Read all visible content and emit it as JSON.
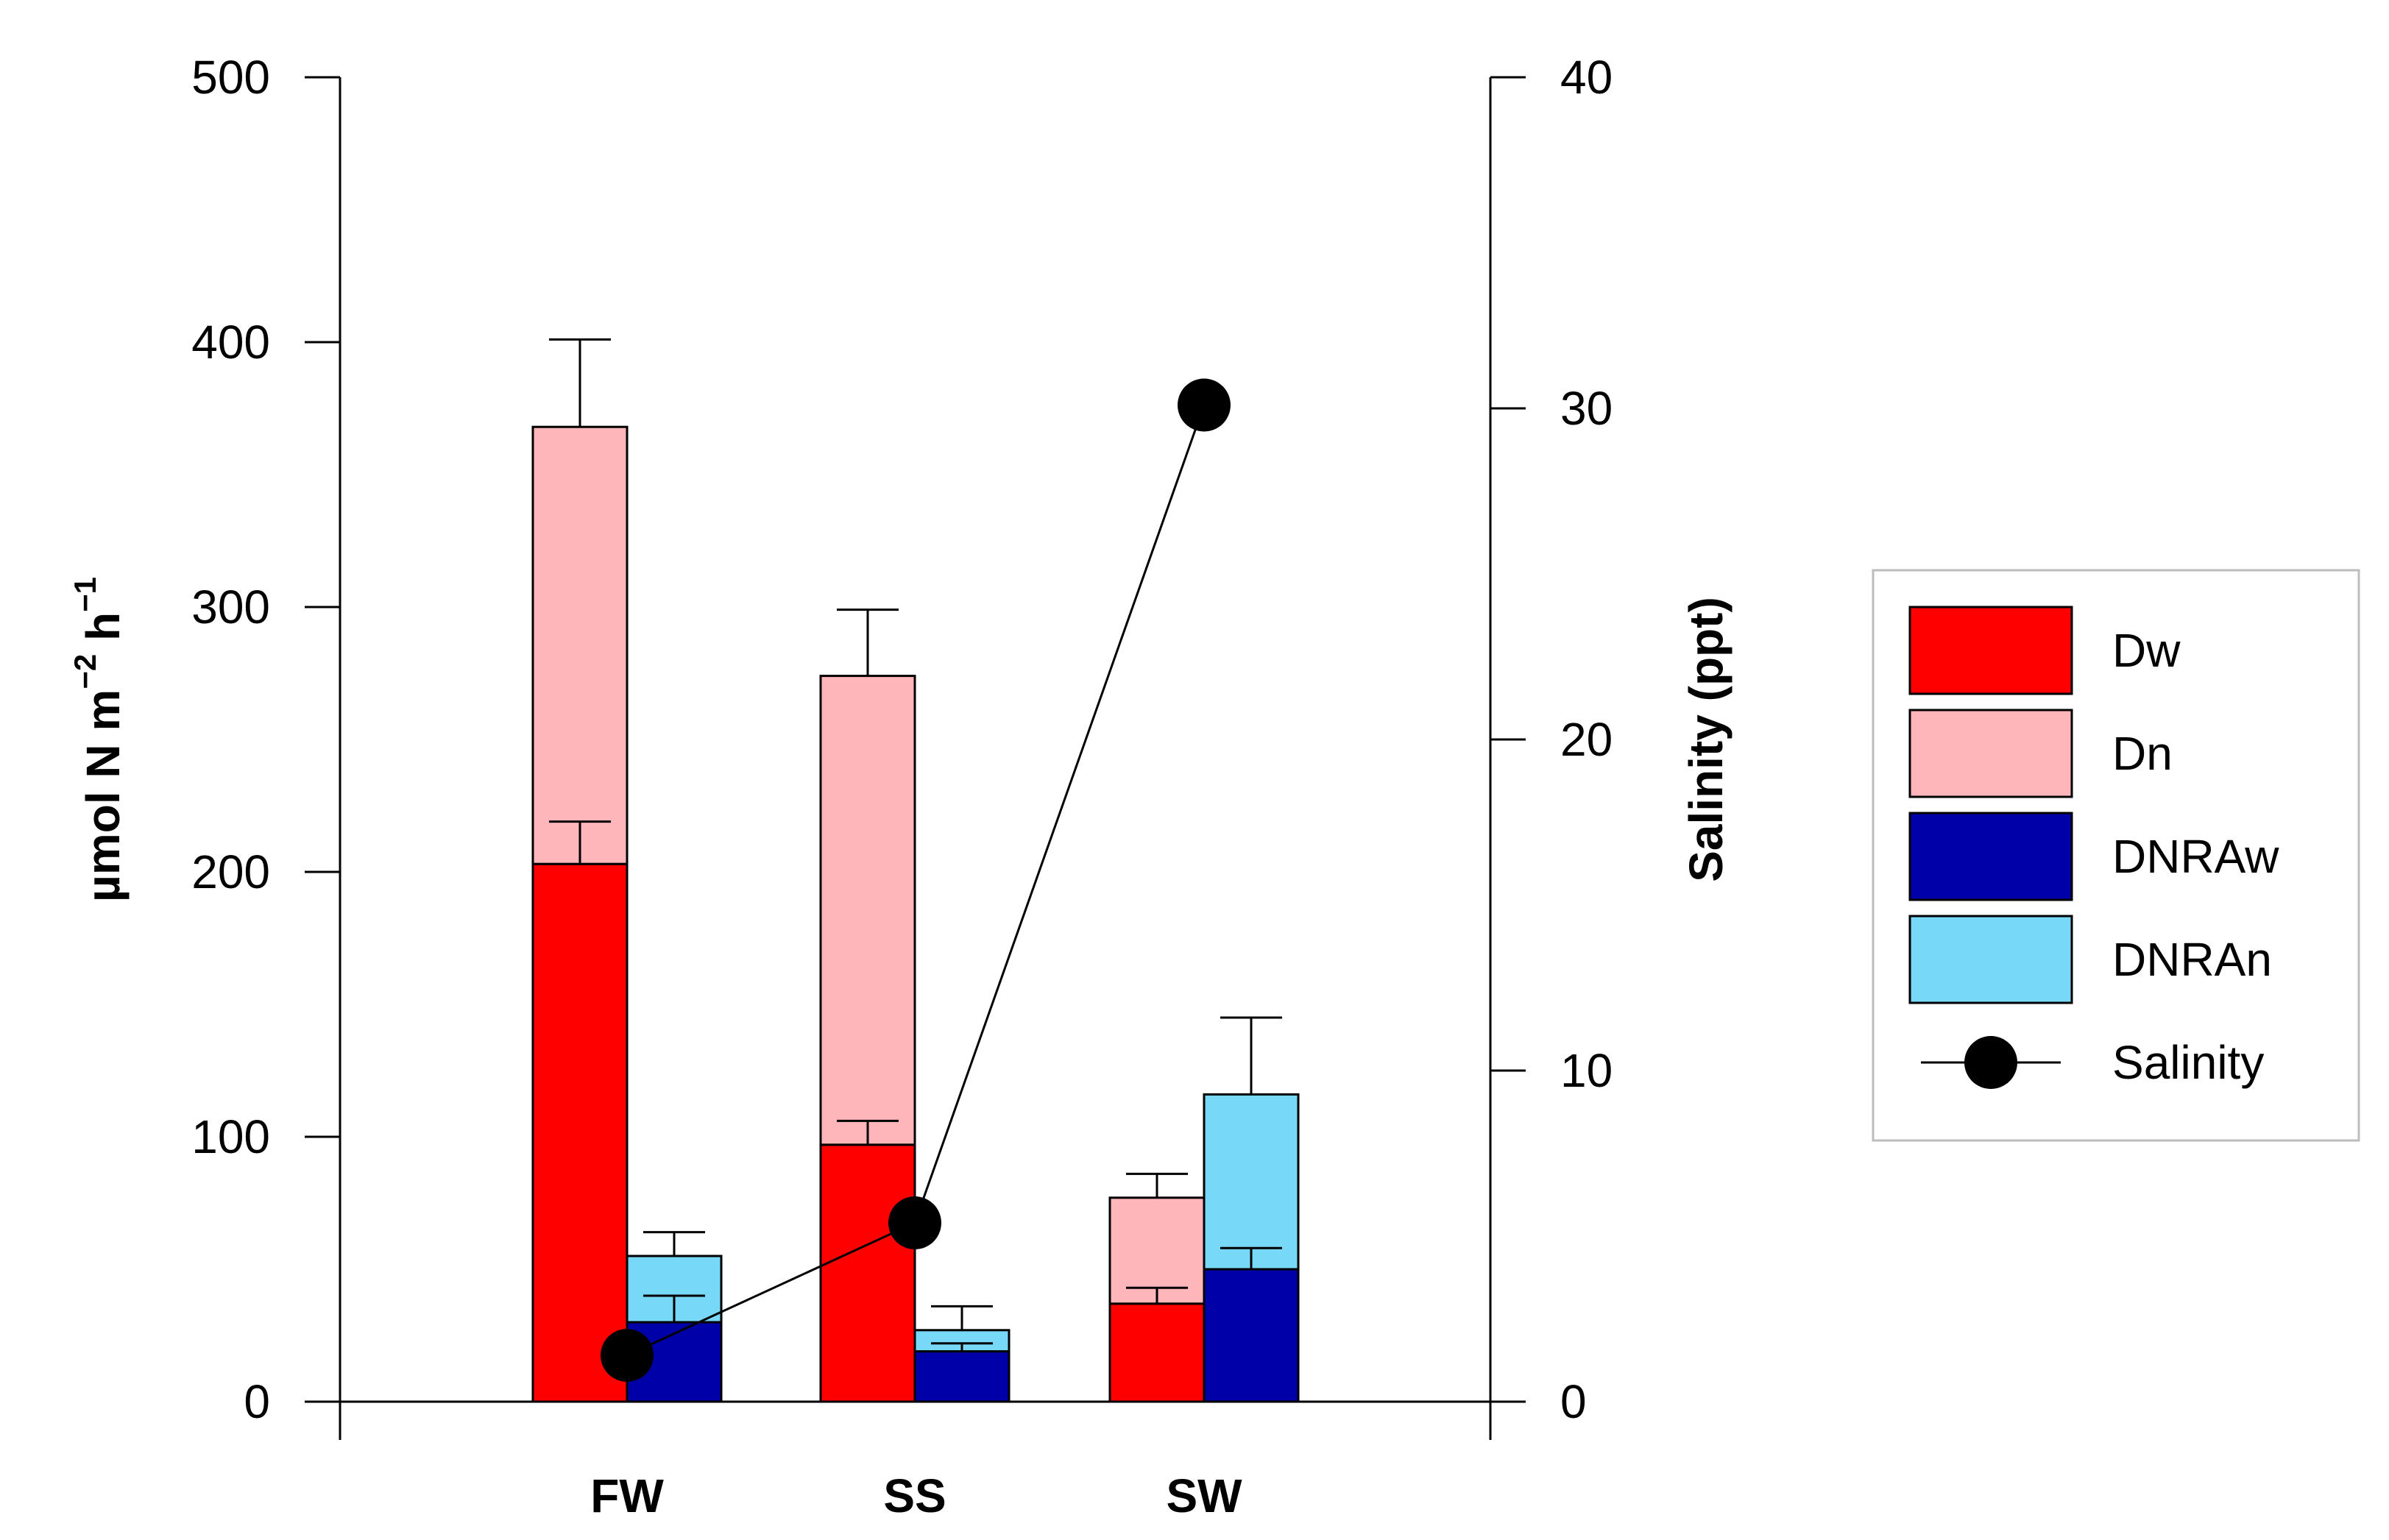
{
  "chart_data": {
    "type": "bar",
    "stacked": true,
    "categories": [
      "FW",
      "SS",
      "SW"
    ],
    "left_axis": {
      "label": "µmol N m",
      "label_sup1": "−2",
      "label_mid": " h",
      "label_sup2": "−1",
      "ylim": [
        0,
        500
      ],
      "ticks": [
        0,
        100,
        200,
        300,
        400,
        500
      ],
      "tick_labels": [
        "0",
        "100",
        "200",
        "300",
        "400",
        "500"
      ]
    },
    "right_axis": {
      "label": "Salinity (ppt)",
      "ylim": [
        0,
        40
      ],
      "ticks": [
        0,
        10,
        20,
        30,
        40
      ],
      "tick_labels": [
        "0",
        "10",
        "20",
        "30",
        "40"
      ]
    },
    "series": [
      {
        "name": "Dw",
        "group": "D",
        "color": "#ff0000",
        "values": [
          203,
          97,
          37
        ],
        "errors": [
          16,
          9,
          6
        ]
      },
      {
        "name": "Dn",
        "group": "D",
        "color": "#ffb6bb",
        "values": [
          165,
          177,
          40
        ],
        "errors": [
          33,
          25,
          9
        ]
      },
      {
        "name": "DNRAw",
        "group": "DNRA",
        "color": "#0000a8",
        "values": [
          30,
          19,
          50
        ],
        "errors": [
          10,
          3,
          8
        ]
      },
      {
        "name": "DNRAn",
        "group": "DNRA",
        "color": "#77d8f8",
        "values": [
          25,
          8,
          66
        ],
        "errors": [
          9,
          9,
          29
        ]
      }
    ],
    "line_series": {
      "name": "Salinity",
      "axis": "right",
      "values": [
        1.4,
        5.4,
        30.1
      ]
    },
    "legend": {
      "position": "right",
      "entries": [
        "Dw",
        "Dn",
        "DNRAw",
        "DNRAn",
        "Salinity"
      ]
    }
  }
}
